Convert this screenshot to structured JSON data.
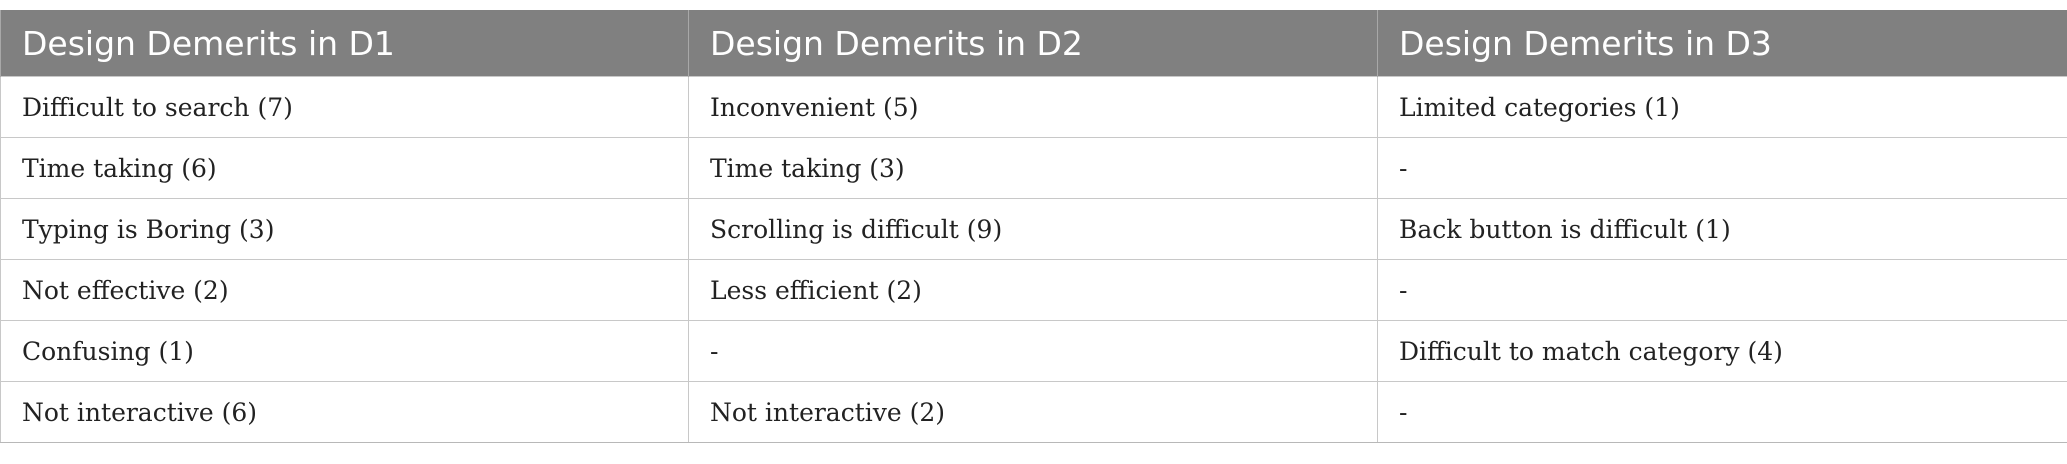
{
  "table": {
    "headers": [
      "Design Demerits in D1",
      "Design Demerits in D2",
      "Design Demerits in D3"
    ],
    "rows": [
      [
        "Difficult to search (7)",
        "Inconvenient (5)",
        "Limited categories (1)"
      ],
      [
        "Time taking (6)",
        "Time taking (3)",
        "-"
      ],
      [
        "Typing is Boring (3)",
        "Scrolling is difficult (9)",
        "Back button is difficult (1)"
      ],
      [
        "Not effective (2)",
        "Less efficient (2)",
        "-"
      ],
      [
        "Confusing (1)",
        "-",
        "Difficult to match category (4)"
      ],
      [
        "Not interactive (6)",
        "Not interactive (2)",
        "-"
      ]
    ]
  },
  "colors": {
    "header_bg": "#808080",
    "header_text": "#ffffff",
    "grid_line": "#c8c8c8"
  }
}
